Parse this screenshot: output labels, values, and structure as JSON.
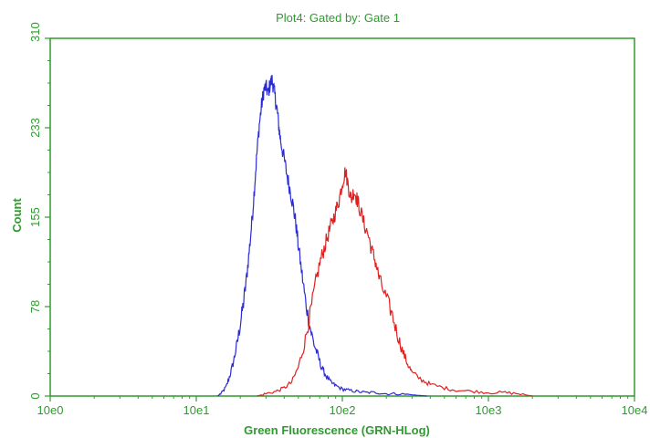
{
  "chart_data": {
    "type": "line",
    "title": "Plot4:  Gated by: Gate 1",
    "xlabel": "Green Fluorescence (GRN-HLog)",
    "ylabel": "Count",
    "x_scale": "log",
    "xlim": [
      1,
      10000
    ],
    "ylim": [
      0,
      310
    ],
    "x_ticks": [
      "10e0",
      "10e1",
      "10e2",
      "10e3",
      "10e4"
    ],
    "y_ticks": [
      "0",
      "78",
      "155",
      "233",
      "310"
    ],
    "grid": false,
    "legend": "none",
    "series": [
      {
        "color": "#2b2bd6",
        "x": [
          14,
          15,
          16,
          17,
          18,
          19,
          20,
          21,
          22,
          23,
          24,
          25,
          26,
          27,
          28,
          29,
          30,
          31,
          32,
          33,
          34,
          35,
          36,
          37,
          38,
          40,
          42,
          44,
          46,
          48,
          50,
          53,
          56,
          60,
          64,
          68,
          72,
          77,
          83,
          90,
          100,
          110,
          125,
          145,
          170,
          200,
          240,
          300,
          380
        ],
        "y": [
          0,
          3,
          8,
          18,
          30,
          45,
          62,
          80,
          100,
          125,
          150,
          180,
          210,
          235,
          252,
          265,
          268,
          262,
          270,
          274,
          266,
          255,
          245,
          230,
          220,
          205,
          190,
          178,
          165,
          150,
          130,
          105,
          82,
          60,
          45,
          35,
          25,
          18,
          12,
          9,
          6,
          5,
          4,
          3,
          3,
          2,
          2,
          1,
          0
        ]
      },
      {
        "color": "#e02020",
        "x": [
          26,
          30,
          35,
          40,
          45,
          50,
          55,
          60,
          65,
          70,
          75,
          80,
          85,
          90,
          95,
          100,
          105,
          110,
          115,
          120,
          125,
          130,
          140,
          150,
          160,
          170,
          180,
          200,
          220,
          240,
          260,
          280,
          300,
          350,
          400,
          500,
          600,
          800,
          1000,
          1300,
          1600,
          2000
        ],
        "y": [
          0,
          2,
          4,
          7,
          12,
          25,
          45,
          70,
          95,
          115,
          128,
          140,
          150,
          160,
          170,
          185,
          195,
          182,
          170,
          178,
          172,
          165,
          150,
          140,
          125,
          115,
          100,
          85,
          70,
          52,
          38,
          28,
          20,
          14,
          10,
          7,
          5,
          4,
          3,
          3,
          2,
          0
        ]
      }
    ]
  },
  "colors": {
    "axis": "#2e9b2e",
    "text": "#2e9b2e"
  }
}
